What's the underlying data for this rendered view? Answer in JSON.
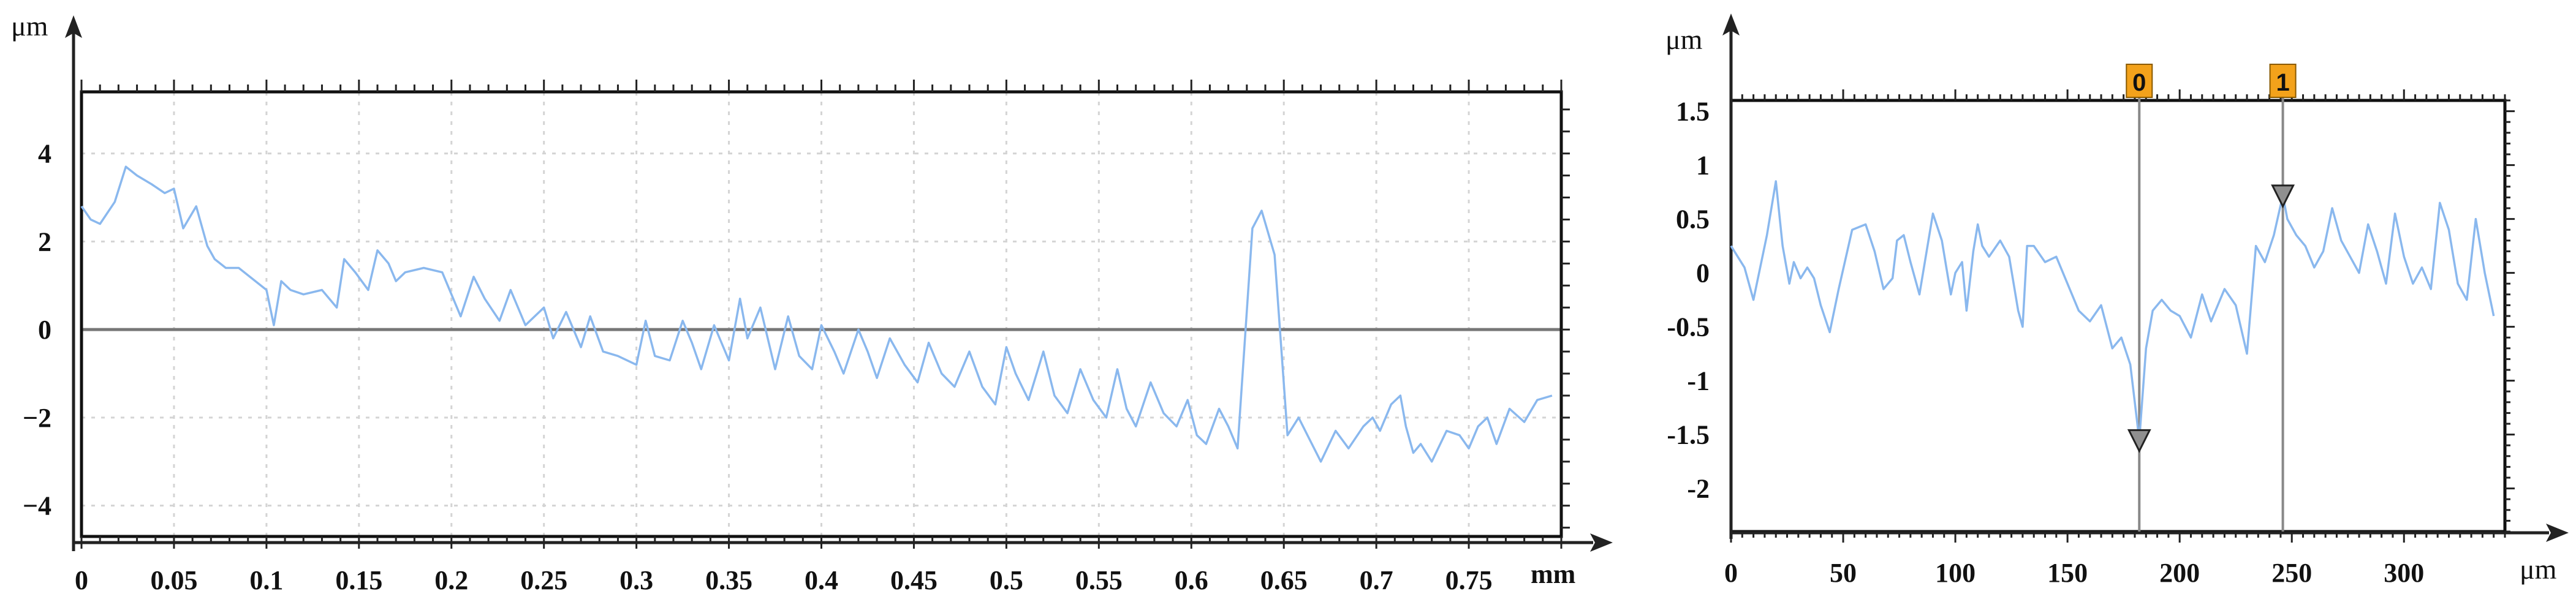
{
  "chart_data": [
    {
      "type": "line",
      "title": "",
      "xlabel": "mm",
      "ylabel": "μm",
      "xlim": [
        0,
        0.8
      ],
      "ylim": [
        -4.7,
        5.4
      ],
      "grid": true,
      "x_ticks": [
        0,
        0.05,
        0.1,
        0.15,
        0.2,
        0.25,
        0.3,
        0.35,
        0.4,
        0.45,
        0.5,
        0.55,
        0.6,
        0.65,
        0.7,
        0.75
      ],
      "x_tick_labels": [
        "0",
        "0.05",
        "0.1",
        "0.15",
        "0.2",
        "0.25",
        "0.3",
        "0.35",
        "0.4",
        "0.45",
        "0.5",
        "0.55",
        "0.6",
        "0.65",
        "0.7",
        "0.75"
      ],
      "y_ticks": [
        4,
        2,
        0,
        -2,
        -4
      ],
      "y_tick_labels": [
        "4",
        "2",
        "0",
        "−2",
        "−4"
      ],
      "colors": {
        "profile": "#8ab8ee",
        "zero_line": "#777777",
        "grid": "#d4d4d4"
      },
      "series": [
        {
          "x": [
            0,
            0.005,
            0.01,
            0.018,
            0.024,
            0.03,
            0.038,
            0.045,
            0.05,
            0.055,
            0.062,
            0.068,
            0.072,
            0.078,
            0.085,
            0.1,
            0.104,
            0.108,
            0.113,
            0.12,
            0.13,
            0.138,
            0.142,
            0.148,
            0.155,
            0.16,
            0.166,
            0.17,
            0.175,
            0.185,
            0.195,
            0.205,
            0.212,
            0.218,
            0.226,
            0.232,
            0.24,
            0.25,
            0.255,
            0.262,
            0.27,
            0.275,
            0.282,
            0.29,
            0.3,
            0.305,
            0.31,
            0.318,
            0.325,
            0.33,
            0.335,
            0.342,
            0.35,
            0.356,
            0.36,
            0.367,
            0.375,
            0.382,
            0.388,
            0.395,
            0.4,
            0.407,
            0.412,
            0.42,
            0.425,
            0.43,
            0.437,
            0.445,
            0.452,
            0.458,
            0.465,
            0.472,
            0.48,
            0.487,
            0.494,
            0.5,
            0.505,
            0.512,
            0.52,
            0.526,
            0.533,
            0.54,
            0.547,
            0.554,
            0.56,
            0.565,
            0.57,
            0.578,
            0.585,
            0.592,
            0.598,
            0.603,
            0.608,
            0.615,
            0.62,
            0.625,
            0.633,
            0.638,
            0.645,
            0.652,
            0.658,
            0.664,
            0.67,
            0.678,
            0.685,
            0.693,
            0.698,
            0.702,
            0.708,
            0.713,
            0.716,
            0.72,
            0.724,
            0.73,
            0.738,
            0.745,
            0.75,
            0.755,
            0.76,
            0.765,
            0.772,
            0.78,
            0.787,
            0.795
          ],
          "y": [
            2.8,
            2.5,
            2.4,
            2.9,
            3.7,
            3.5,
            3.3,
            3.1,
            3.2,
            2.3,
            2.8,
            1.9,
            1.6,
            1.4,
            1.4,
            0.9,
            0.1,
            1.1,
            0.9,
            0.8,
            0.9,
            0.5,
            1.6,
            1.3,
            0.9,
            1.8,
            1.5,
            1.1,
            1.3,
            1.4,
            1.3,
            0.3,
            1.2,
            0.7,
            0.2,
            0.9,
            0.1,
            0.5,
            -0.2,
            0.4,
            -0.4,
            0.3,
            -0.5,
            -0.6,
            -0.8,
            0.2,
            -0.6,
            -0.7,
            0.2,
            -0.3,
            -0.9,
            0.1,
            -0.7,
            0.7,
            -0.2,
            0.5,
            -0.9,
            0.3,
            -0.6,
            -0.9,
            0.1,
            -0.5,
            -1.0,
            0.0,
            -0.5,
            -1.1,
            -0.2,
            -0.8,
            -1.2,
            -0.3,
            -1.0,
            -1.3,
            -0.5,
            -1.3,
            -1.7,
            -0.4,
            -1.0,
            -1.6,
            -0.5,
            -1.5,
            -1.9,
            -0.9,
            -1.6,
            -2.0,
            -0.9,
            -1.8,
            -2.2,
            -1.2,
            -1.9,
            -2.2,
            -1.6,
            -2.4,
            -2.6,
            -1.8,
            -2.2,
            -2.7,
            2.3,
            2.7,
            1.7,
            -2.4,
            -2.0,
            -2.5,
            -3.0,
            -2.3,
            -2.7,
            -2.2,
            -2.0,
            -2.3,
            -1.7,
            -1.5,
            -2.2,
            -2.8,
            -2.6,
            -3.0,
            -2.3,
            -2.4,
            -2.7,
            -2.2,
            -2.0,
            -2.6,
            -1.8,
            -2.1,
            -1.6,
            -1.5
          ]
        }
      ]
    },
    {
      "type": "line",
      "title": "",
      "xlabel": "μm",
      "ylabel": "μm",
      "xlim": [
        0,
        345
      ],
      "ylim": [
        -2.4,
        1.6
      ],
      "grid": false,
      "x_ticks": [
        0,
        50,
        100,
        150,
        200,
        250,
        300
      ],
      "x_tick_labels": [
        "0",
        "50",
        "100",
        "150",
        "200",
        "250",
        "300"
      ],
      "y_ticks": [
        1.5,
        1,
        0.5,
        0,
        -0.5,
        -1,
        -1.5,
        -2
      ],
      "y_tick_labels": [
        "1.5",
        "1",
        "0.5",
        "0",
        "-0.5",
        "-1",
        "-1.5",
        "-2"
      ],
      "colors": {
        "profile": "#8ab8ee",
        "cursor_line": "#888888",
        "cursor_flag": "#f3a21b",
        "marker": "#8f8f8f"
      },
      "cursors": [
        {
          "label": "0",
          "x": 182,
          "y": -1.55
        },
        {
          "label": "1",
          "x": 246,
          "y": 0.72
        }
      ],
      "series": [
        {
          "x": [
            0,
            6,
            10,
            16,
            20,
            23,
            26,
            28,
            31,
            34,
            37,
            40,
            44,
            48,
            54,
            60,
            64,
            68,
            72,
            74,
            77,
            80,
            84,
            90,
            94,
            96,
            98,
            100,
            103,
            105,
            108,
            110,
            112,
            115,
            120,
            124,
            128,
            130,
            132,
            135,
            140,
            145,
            150,
            155,
            160,
            165,
            170,
            174,
            178,
            182,
            185,
            188,
            192,
            196,
            200,
            205,
            210,
            214,
            220,
            225,
            230,
            234,
            238,
            242,
            246,
            248,
            252,
            256,
            260,
            264,
            268,
            272,
            276,
            280,
            284,
            288,
            292,
            296,
            300,
            304,
            308,
            312,
            316,
            320,
            324,
            328,
            332,
            336,
            340
          ],
          "y": [
            0.25,
            0.05,
            -0.25,
            0.35,
            0.85,
            0.25,
            -0.1,
            0.1,
            -0.05,
            0.05,
            -0.05,
            -0.3,
            -0.55,
            -0.15,
            0.4,
            0.45,
            0.2,
            -0.15,
            -0.05,
            0.3,
            0.35,
            0.1,
            -0.2,
            0.55,
            0.3,
            0.05,
            -0.2,
            0.0,
            0.1,
            -0.35,
            0.2,
            0.45,
            0.25,
            0.15,
            0.3,
            0.15,
            -0.35,
            -0.5,
            0.25,
            0.25,
            0.1,
            0.15,
            -0.1,
            -0.35,
            -0.45,
            -0.3,
            -0.7,
            -0.6,
            -0.85,
            -1.55,
            -0.7,
            -0.35,
            -0.25,
            -0.35,
            -0.4,
            -0.6,
            -0.2,
            -0.45,
            -0.15,
            -0.3,
            -0.75,
            0.25,
            0.1,
            0.35,
            0.72,
            0.5,
            0.35,
            0.25,
            0.05,
            0.2,
            0.6,
            0.3,
            0.15,
            0.0,
            0.45,
            0.2,
            -0.1,
            0.55,
            0.15,
            -0.1,
            0.05,
            -0.15,
            0.65,
            0.4,
            -0.1,
            -0.25,
            0.5,
            0.0,
            -0.4
          ]
        }
      ]
    }
  ]
}
